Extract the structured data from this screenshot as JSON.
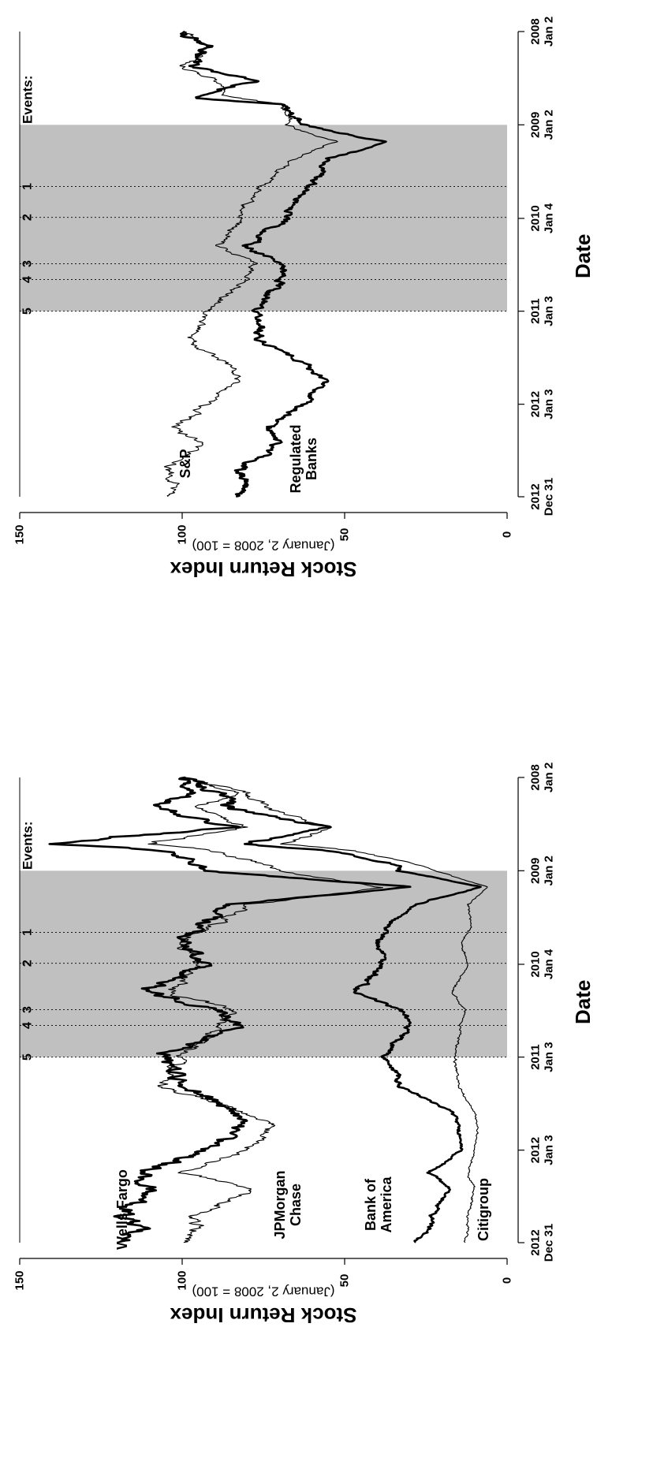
{
  "chart_data": [
    {
      "type": "line",
      "x_axis_label": "Date",
      "y_axis_label": "Stock Return Index",
      "y_axis_sublabel": "(January 2, 2008 = 100)",
      "ylim": [
        0,
        150
      ],
      "y_ticks": [
        "0",
        "50",
        "100",
        "150"
      ],
      "x_ticks": [
        {
          "year": "2008",
          "day": "Jan 2"
        },
        {
          "year": "2009",
          "day": "Jan 2"
        },
        {
          "year": "2010",
          "day": "Jan 4"
        },
        {
          "year": "2011",
          "day": "Jan 3"
        },
        {
          "year": "2012",
          "day": "Jan 3"
        },
        {
          "year": "2012",
          "day": "Dec 31"
        }
      ],
      "events_label": "Events:",
      "events": [
        {
          "label": "1",
          "date": "2009-09-01"
        },
        {
          "label": "2",
          "date": "2009-12-31"
        },
        {
          "label": "3",
          "date": "2010-07-01"
        },
        {
          "label": "4",
          "date": "2010-09-01"
        },
        {
          "label": "5",
          "date": "2011-01-03"
        }
      ],
      "shaded_period": [
        "2009-01-02",
        "2011-01-03"
      ],
      "series": [
        {
          "name": "S&P",
          "label_lines": [
            "S&P"
          ],
          "width": 1,
          "anchors": [
            [
              "2008-01-02",
              100
            ],
            [
              "2008-03-01",
              92
            ],
            [
              "2008-05-15",
              100
            ],
            [
              "2008-07-15",
              89
            ],
            [
              "2008-09-15",
              85
            ],
            [
              "2008-10-15",
              70
            ],
            [
              "2008-12-15",
              66
            ],
            [
              "2009-01-02",
              68
            ],
            [
              "2009-03-09",
              52
            ],
            [
              "2009-05-15",
              66
            ],
            [
              "2009-08-01",
              72
            ],
            [
              "2009-10-15",
              79
            ],
            [
              "2010-01-04",
              82
            ],
            [
              "2010-04-23",
              88
            ],
            [
              "2010-07-01",
              77
            ],
            [
              "2010-09-01",
              80
            ],
            [
              "2011-01-03",
              92
            ],
            [
              "2011-04-29",
              98
            ],
            [
              "2011-08-08",
              85
            ],
            [
              "2011-10-01",
              83
            ],
            [
              "2012-01-03",
              92
            ],
            [
              "2012-04-01",
              102
            ],
            [
              "2012-06-01",
              95
            ],
            [
              "2012-09-15",
              105
            ],
            [
              "2012-11-15",
              101
            ],
            [
              "2012-12-31",
              105
            ]
          ]
        },
        {
          "name": "Regulated Banks",
          "label_lines": [
            "Regulated",
            "Banks"
          ],
          "width": 3,
          "anchors": [
            [
              "2008-01-02",
              100
            ],
            [
              "2008-03-01",
              92
            ],
            [
              "2008-05-15",
              97
            ],
            [
              "2008-07-15",
              78
            ],
            [
              "2008-09-19",
              95
            ],
            [
              "2008-10-15",
              70
            ],
            [
              "2008-12-15",
              64
            ],
            [
              "2009-01-02",
              62
            ],
            [
              "2009-03-09",
              38
            ],
            [
              "2009-05-15",
              55
            ],
            [
              "2009-08-01",
              58
            ],
            [
              "2009-10-15",
              64
            ],
            [
              "2010-01-04",
              68
            ],
            [
              "2010-04-23",
              80
            ],
            [
              "2010-07-01",
              70
            ],
            [
              "2010-09-01",
              69
            ],
            [
              "2011-01-03",
              78
            ],
            [
              "2011-04-29",
              75
            ],
            [
              "2011-08-08",
              62
            ],
            [
              "2011-10-01",
              56
            ],
            [
              "2012-01-03",
              63
            ],
            [
              "2012-04-01",
              75
            ],
            [
              "2012-06-01",
              70
            ],
            [
              "2012-09-15",
              82
            ],
            [
              "2012-11-15",
              80
            ],
            [
              "2012-12-31",
              84
            ]
          ]
        }
      ]
    },
    {
      "type": "line",
      "x_axis_label": "Date",
      "y_axis_label": "Stock Return Index",
      "y_axis_sublabel": "(January 2, 2008 = 100)",
      "ylim": [
        0,
        150
      ],
      "y_ticks": [
        "0",
        "50",
        "100",
        "150"
      ],
      "x_ticks": [
        {
          "year": "2008",
          "day": "Jan 2"
        },
        {
          "year": "2009",
          "day": "Jan 2"
        },
        {
          "year": "2010",
          "day": "Jan 4"
        },
        {
          "year": "2011",
          "day": "Jan 3"
        },
        {
          "year": "2012",
          "day": "Jan 3"
        },
        {
          "year": "2012",
          "day": "Dec 31"
        }
      ],
      "events_label": "Events:",
      "events": [
        {
          "label": "1",
          "date": "2009-09-01"
        },
        {
          "label": "2",
          "date": "2009-12-31"
        },
        {
          "label": "3",
          "date": "2010-07-01"
        },
        {
          "label": "4",
          "date": "2010-09-01"
        },
        {
          "label": "5",
          "date": "2011-01-03"
        }
      ],
      "shaded_period": [
        "2009-01-02",
        "2011-01-03"
      ],
      "series": [
        {
          "name": "Wells Fargo",
          "label_lines": [
            "Wells Fargo"
          ],
          "width": 3,
          "anchors": [
            [
              "2008-01-02",
              100
            ],
            [
              "2008-03-01",
              95
            ],
            [
              "2008-05-01",
              110
            ],
            [
              "2008-07-15",
              85
            ],
            [
              "2008-09-19",
              142
            ],
            [
              "2008-10-15",
              105
            ],
            [
              "2008-12-15",
              95
            ],
            [
              "2009-01-02",
              95
            ],
            [
              "2009-03-06",
              30
            ],
            [
              "2009-05-15",
              85
            ],
            [
              "2009-08-01",
              95
            ],
            [
              "2009-10-15",
              100
            ],
            [
              "2010-01-04",
              92
            ],
            [
              "2010-04-23",
              112
            ],
            [
              "2010-07-01",
              88
            ],
            [
              "2010-09-01",
              82
            ],
            [
              "2011-01-03",
              105
            ],
            [
              "2011-04-29",
              100
            ],
            [
              "2011-08-08",
              82
            ],
            [
              "2011-10-01",
              82
            ],
            [
              "2012-01-03",
              93
            ],
            [
              "2012-04-01",
              112
            ],
            [
              "2012-06-01",
              110
            ],
            [
              "2012-09-15",
              118
            ],
            [
              "2012-11-15",
              114
            ],
            [
              "2012-12-31",
              118
            ]
          ]
        },
        {
          "name": "JPMorgan Chase",
          "label_lines": [
            "JPMorgan",
            "Chase"
          ],
          "width": 1,
          "anchors": [
            [
              "2008-01-02",
              100
            ],
            [
              "2008-03-01",
              85
            ],
            [
              "2008-05-01",
              96
            ],
            [
              "2008-07-15",
              80
            ],
            [
              "2008-09-19",
              110
            ],
            [
              "2008-10-15",
              90
            ],
            [
              "2008-12-15",
              72
            ],
            [
              "2009-01-02",
              70
            ],
            [
              "2009-03-09",
              38
            ],
            [
              "2009-05-15",
              80
            ],
            [
              "2009-08-01",
              90
            ],
            [
              "2009-10-15",
              100
            ],
            [
              "2010-01-04",
              95
            ],
            [
              "2010-04-23",
              105
            ],
            [
              "2010-07-01",
              85
            ],
            [
              "2010-09-01",
              88
            ],
            [
              "2011-01-03",
              100
            ],
            [
              "2011-04-29",
              106
            ],
            [
              "2011-08-08",
              80
            ],
            [
              "2011-10-01",
              72
            ],
            [
              "2012-01-03",
              80
            ],
            [
              "2012-04-01",
              102
            ],
            [
              "2012-06-01",
              78
            ],
            [
              "2012-09-15",
              96
            ],
            [
              "2012-11-15",
              95
            ],
            [
              "2012-12-31",
              102
            ]
          ]
        },
        {
          "name": "Bank of America",
          "label_lines": [
            "Bank of",
            "America"
          ],
          "width": 3,
          "anchors": [
            [
              "2008-01-02",
              100
            ],
            [
              "2008-03-01",
              90
            ],
            [
              "2008-05-01",
              85
            ],
            [
              "2008-07-15",
              55
            ],
            [
              "2008-09-19",
              82
            ],
            [
              "2008-10-15",
              55
            ],
            [
              "2008-12-15",
              32
            ],
            [
              "2009-01-02",
              33
            ],
            [
              "2009-03-06",
              8
            ],
            [
              "2009-05-15",
              28
            ],
            [
              "2009-08-01",
              37
            ],
            [
              "2009-10-15",
              40
            ],
            [
              "2010-01-04",
              38
            ],
            [
              "2010-04-23",
              47
            ],
            [
              "2010-07-01",
              33
            ],
            [
              "2010-09-01",
              30
            ],
            [
              "2011-01-03",
              37
            ],
            [
              "2011-04-29",
              32
            ],
            [
              "2011-08-08",
              17
            ],
            [
              "2011-10-01",
              15
            ],
            [
              "2012-01-03",
              14
            ],
            [
              "2012-04-01",
              24
            ],
            [
              "2012-06-01",
              18
            ],
            [
              "2012-09-15",
              23
            ],
            [
              "2012-11-15",
              24
            ],
            [
              "2012-12-31",
              30
            ]
          ]
        },
        {
          "name": "Citigroup",
          "label_lines": [
            "Citigroup"
          ],
          "width": 1,
          "anchors": [
            [
              "2008-01-02",
              100
            ],
            [
              "2008-03-01",
              80
            ],
            [
              "2008-05-01",
              75
            ],
            [
              "2008-07-15",
              55
            ],
            [
              "2008-09-19",
              68
            ],
            [
              "2008-10-15",
              48
            ],
            [
              "2008-12-15",
              25
            ],
            [
              "2009-01-02",
              22
            ],
            [
              "2009-03-06",
              6
            ],
            [
              "2009-05-15",
              12
            ],
            [
              "2009-08-01",
              11
            ],
            [
              "2009-10-15",
              14
            ],
            [
              "2010-01-04",
              12
            ],
            [
              "2010-04-23",
              17
            ],
            [
              "2010-07-01",
              13
            ],
            [
              "2010-09-01",
              14
            ],
            [
              "2011-01-03",
              16
            ],
            [
              "2011-04-29",
              15
            ],
            [
              "2011-08-08",
              10
            ],
            [
              "2011-10-01",
              9
            ],
            [
              "2012-01-03",
              10
            ],
            [
              "2012-04-01",
              12
            ],
            [
              "2012-06-01",
              10
            ],
            [
              "2012-09-15",
              12
            ],
            [
              "2012-11-15",
              12
            ],
            [
              "2012-12-31",
              13
            ]
          ]
        }
      ]
    }
  ]
}
